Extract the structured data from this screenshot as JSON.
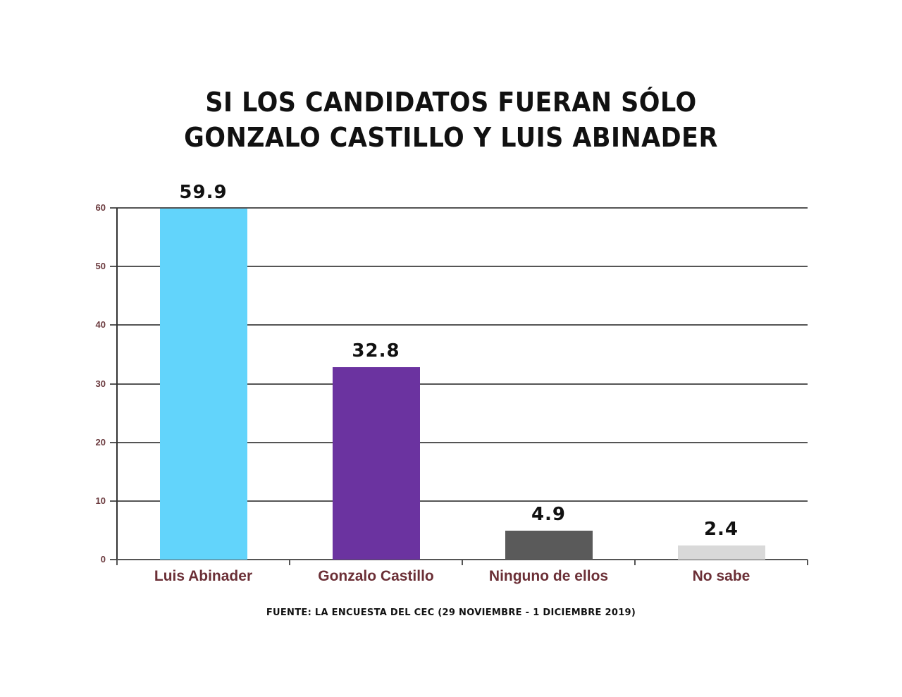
{
  "title": {
    "line1": "SI LOS CANDIDATOS FUERAN SÓLO",
    "line2": "GONZALO CASTILLO Y LUIS ABINADER"
  },
  "source": "FUENTE: LA ENCUESTA DEL CEC (29 NOVIEMBRE - 1 DICIEMBRE 2019)",
  "colors": {
    "luis_abinader": "#62d4fb",
    "gonzalo_castillo": "#6b33a0",
    "ninguno": "#5a5a5a",
    "no_sabe": "#d9d9d9",
    "axis_label": "#6b2f36"
  },
  "chart_data": {
    "type": "bar",
    "title": "SI LOS CANDIDATOS FUERAN SÓLO GONZALO CASTILLO Y LUIS ABINADER",
    "categories": [
      "Luis Abinader",
      "Gonzalo Castillo",
      "Ninguno de ellos",
      "No sabe"
    ],
    "values": [
      59.9,
      32.8,
      4.9,
      2.4
    ],
    "value_labels": [
      "59.9",
      "32.8",
      "4.9",
      "2.4"
    ],
    "colors": [
      "#62d4fb",
      "#6b33a0",
      "#5a5a5a",
      "#d9d9d9"
    ],
    "xlabel": "",
    "ylabel": "",
    "ylim": [
      0,
      60
    ],
    "yticks": [
      0,
      10,
      20,
      30,
      40,
      50,
      60
    ],
    "grid": true,
    "legend": "none",
    "annotation": "FUENTE: LA ENCUESTA DEL CEC (29 NOVIEMBRE - 1 DICIEMBRE 2019)"
  }
}
